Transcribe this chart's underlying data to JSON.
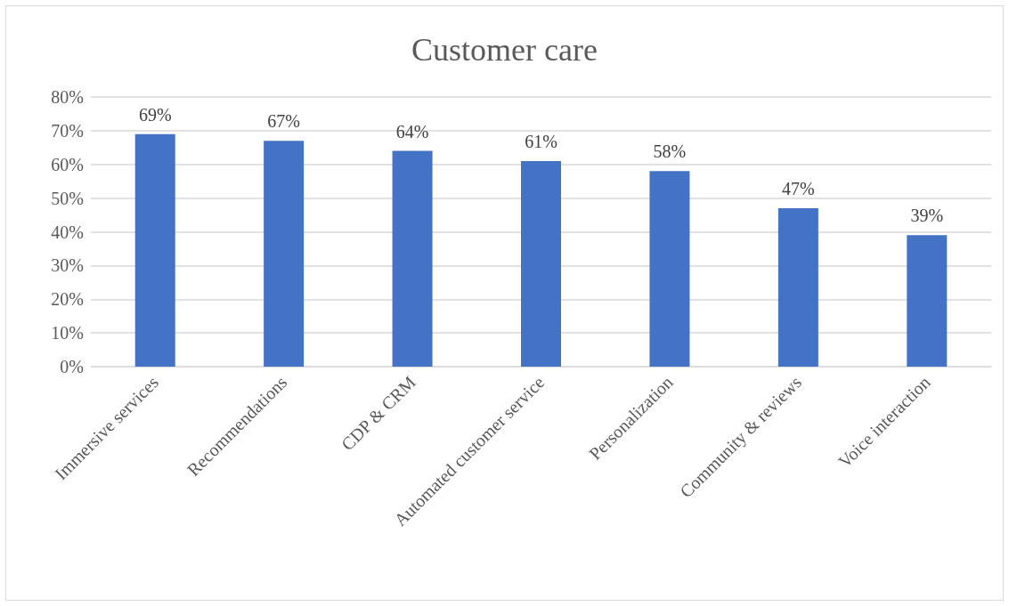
{
  "chart_data": {
    "type": "bar",
    "title": "Customer care",
    "categories": [
      "Immersive services",
      "Recommendations",
      "CDP & CRM",
      "Automated customer service",
      "Personalization",
      "Community & reviews",
      "Voice interaction"
    ],
    "values": [
      69,
      67,
      64,
      61,
      58,
      47,
      39
    ],
    "value_labels": [
      "69%",
      "67%",
      "64%",
      "61%",
      "58%",
      "47%",
      "39%"
    ],
    "color": "#4472c4",
    "ylim": [
      0,
      80
    ],
    "yticks": [
      {
        "value": 0,
        "label": "0%"
      },
      {
        "value": 10,
        "label": "10%"
      },
      {
        "value": 20,
        "label": "20%"
      },
      {
        "value": 30,
        "label": "30%"
      },
      {
        "value": 40,
        "label": "40%"
      },
      {
        "value": 50,
        "label": "50%"
      },
      {
        "value": 60,
        "label": "60%"
      },
      {
        "value": 70,
        "label": "70%"
      },
      {
        "value": 80,
        "label": "80%"
      }
    ],
    "grid": "y"
  }
}
